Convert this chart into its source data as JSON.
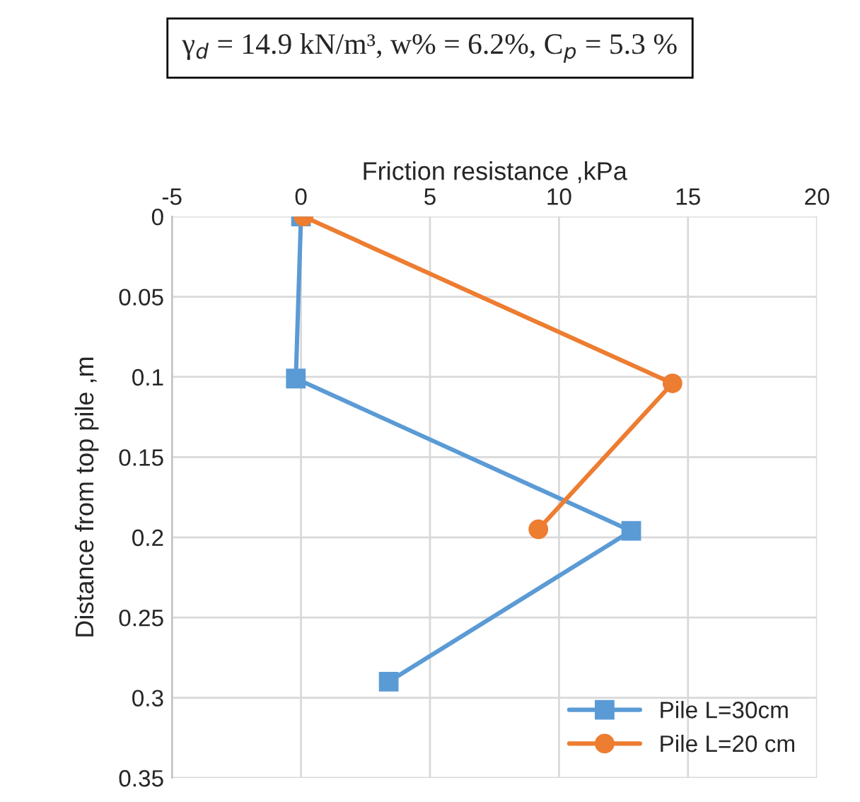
{
  "chart_data": {
    "type": "line",
    "title": "γ$_{d}$ = 14.9 kN/m³, w% = 6.2%, C$_{p}$ = 5.3 %",
    "xlabel": "Friction resistance ,kPa",
    "ylabel": "Distance from top pile ,m",
    "series": [
      {
        "name": "Pile L=30cm",
        "color": "#5b9bd5",
        "marker": "square",
        "x": [
          0,
          -0.2,
          12.8,
          3.4
        ],
        "values": [
          0,
          0.101,
          0.196,
          0.29
        ]
      },
      {
        "name": "Pile L=20 cm",
        "color": "#ed7d31",
        "marker": "circle",
        "x": [
          0.1,
          14.4,
          9.2
        ],
        "values": [
          0,
          0.104,
          0.195
        ]
      }
    ],
    "xlim": [
      -5,
      20
    ],
    "xticks": [
      -5,
      0,
      5,
      10,
      15,
      20
    ],
    "ylim": [
      0.35,
      0
    ],
    "yticks": [
      0,
      0.05,
      0.1,
      0.15,
      0.2,
      0.25,
      0.3,
      0.35
    ],
    "grid": true,
    "legend": "bottom right",
    "line_style": "solid"
  }
}
